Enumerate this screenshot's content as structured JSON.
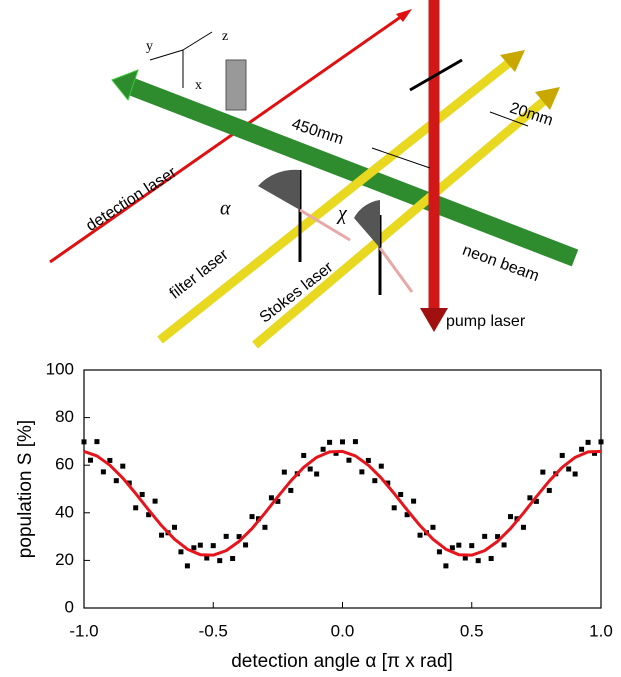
{
  "diagram": {
    "labels": [
      "x",
      "y",
      "z",
      "450mm",
      "20mm",
      "detection laser",
      "filter laser",
      "Stokes laser",
      "neon beam",
      "pump laser",
      "α",
      "χ"
    ]
  },
  "chart_data": {
    "type": "scatter",
    "xlabel": "detection angle α [π x rad]",
    "ylabel": "population S [%]",
    "xlim": [
      -1,
      1
    ],
    "ylim": [
      0,
      100
    ],
    "xticks": [
      {
        "value": -1,
        "label": "-1.0"
      },
      {
        "value": -0.5,
        "label": "-0.5"
      },
      {
        "value": 0,
        "label": "0.0"
      },
      {
        "value": 0.5,
        "label": "0.5"
      },
      {
        "value": 1,
        "label": "1.0"
      }
    ],
    "yticks": [
      0,
      20,
      40,
      60,
      80,
      100
    ],
    "series": [
      {
        "color": "#000000",
        "x": [
          -1,
          -0.975,
          -0.95,
          -0.925,
          -0.9,
          -0.875,
          -0.85,
          -0.825,
          -0.8,
          -0.775,
          -0.75,
          -0.725,
          -0.7,
          -0.675,
          -0.65,
          -0.625,
          -0.6,
          -0.575,
          -0.55,
          -0.525,
          -0.5,
          -0.475,
          -0.45,
          -0.425,
          -0.4,
          -0.375,
          -0.35,
          -0.325,
          -0.3,
          -0.275,
          -0.25,
          -0.225,
          -0.2,
          -0.175,
          -0.15,
          -0.125,
          -0.1,
          -0.075,
          -0.05,
          -0.025,
          0,
          0.025,
          0.05,
          0.075,
          0.1,
          0.125,
          0.15,
          0.175,
          0.2,
          0.225,
          0.25,
          0.275,
          0.3,
          0.325,
          0.35,
          0.375,
          0.4,
          0.425,
          0.45,
          0.475,
          0.5,
          0.525,
          0.55,
          0.575,
          0.6,
          0.625,
          0.65,
          0.675,
          0.7,
          0.725,
          0.75,
          0.775,
          0.8,
          0.825,
          0.85,
          0.875,
          0.9,
          0.925,
          0.95,
          0.975,
          1
        ],
        "values": [
          69.8,
          62.1,
          69.9,
          57.2,
          62.0,
          53.5,
          59.6,
          52.5,
          42.1,
          47.7,
          39.2,
          44.9,
          30.6,
          31.6,
          33.9,
          23.6,
          17.7,
          25.3,
          26.4,
          21.0,
          26.2,
          19.9,
          30.1,
          20.8,
          30.0,
          26.5,
          38.4,
          37.5,
          33.9,
          46.3,
          44.8,
          57.1,
          49.4,
          56.4,
          64.1,
          58.4,
          56.3,
          66.7,
          69.6,
          65.0,
          69.8,
          62.1,
          69.9,
          57.2,
          62.0,
          53.5,
          59.6,
          52.5,
          42.1,
          47.7,
          39.2,
          44.9,
          30.6,
          31.6,
          33.9,
          23.6,
          17.7,
          25.3,
          26.4,
          21.0,
          26.2,
          19.9,
          30.1,
          20.8,
          30.0,
          26.5,
          38.4,
          37.5,
          33.9,
          46.3,
          44.8,
          57.1,
          49.4,
          56.4,
          64.1,
          58.4,
          56.3,
          66.7,
          69.6,
          65.0,
          69.8
        ]
      },
      {
        "type": "line",
        "color": "#e8141b",
        "x": [
          -1,
          -0.95,
          -0.9,
          -0.85,
          -0.8,
          -0.75,
          -0.7,
          -0.65,
          -0.6,
          -0.55,
          -0.5,
          -0.45,
          -0.4,
          -0.35,
          -0.3,
          -0.25,
          -0.2,
          -0.15,
          -0.1,
          -0.05,
          0,
          0.05,
          0.1,
          0.15,
          0.2,
          0.25,
          0.3,
          0.35,
          0.4,
          0.45,
          0.5,
          0.55,
          0.6,
          0.65,
          0.7,
          0.75,
          0.8,
          0.85,
          0.9,
          0.95,
          1
        ],
        "values": [
          65.8,
          63.9,
          60.0,
          54.6,
          48.1,
          41.2,
          34.6,
          28.9,
          24.7,
          22.4,
          22.2,
          24.1,
          28.0,
          33.4,
          39.9,
          46.8,
          53.4,
          59.1,
          63.3,
          65.6,
          65.8,
          63.9,
          60.0,
          54.6,
          48.1,
          41.2,
          34.6,
          28.9,
          24.7,
          22.4,
          22.2,
          24.1,
          28.0,
          33.4,
          39.9,
          46.8,
          53.4,
          59.1,
          63.3,
          65.6,
          65.8
        ]
      }
    ]
  }
}
